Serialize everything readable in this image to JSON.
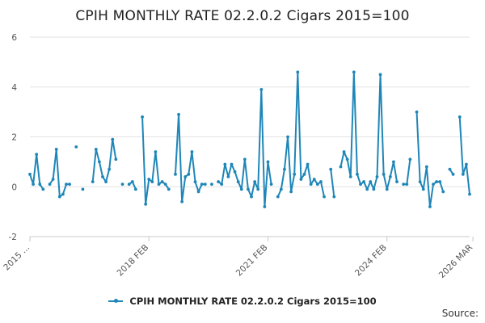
{
  "title": "CPIH MONTHLY RATE 02.2.0.2 Cigars 2015=100",
  "source_label": "Source:",
  "legend_label": "CPIH MONTHLY RATE 02.2.0.2 Cigars 2015=100",
  "colors": {
    "series": "#1f86b8",
    "grid": "#e2e2e2",
    "axis": "#c8c8c8",
    "text": "#555555"
  },
  "chart_data": {
    "type": "line",
    "title": "CPIH MONTHLY RATE 02.2.0.2 Cigars 2015=100",
    "xlabel": "",
    "ylabel": "",
    "ylim": [
      -2,
      6
    ],
    "y_ticks": [
      -2,
      0,
      2,
      4,
      6
    ],
    "x_tick_labels": [
      "2015 ...",
      "2018 FEB",
      "2021 FEB",
      "2024 FEB",
      "2026 MAR"
    ],
    "x_tick_index": [
      0,
      36,
      72,
      108,
      134
    ],
    "grid": true,
    "legend": "bottom",
    "series": [
      {
        "name": "CPIH MONTHLY RATE 02.2.0.2 Cigars 2015=100",
        "values": [
          0.5,
          0.1,
          1.3,
          0.1,
          -0.1,
          null,
          0.1,
          0.3,
          1.5,
          -0.4,
          -0.3,
          0.1,
          0.1,
          null,
          1.6,
          null,
          -0.1,
          null,
          null,
          0.2,
          1.5,
          1.0,
          0.4,
          0.2,
          0.7,
          1.9,
          1.1,
          null,
          0.1,
          null,
          0.1,
          0.2,
          -0.1,
          null,
          2.8,
          -0.7,
          0.3,
          0.2,
          1.4,
          0.1,
          0.2,
          0.1,
          -0.1,
          null,
          0.5,
          2.9,
          -0.6,
          0.4,
          0.5,
          1.4,
          0.2,
          -0.2,
          0.1,
          0.1,
          null,
          0.1,
          null,
          0.2,
          0.1,
          0.9,
          0.4,
          0.9,
          0.6,
          0.2,
          -0.1,
          1.1,
          -0.1,
          -0.4,
          0.2,
          -0.1,
          3.9,
          -0.8,
          1.0,
          0.1,
          null,
          -0.4,
          -0.1,
          0.7,
          2.0,
          -0.2,
          0.5,
          4.6,
          0.3,
          0.5,
          0.9,
          0.1,
          0.3,
          0.1,
          0.2,
          -0.4,
          null,
          0.7,
          -0.4,
          null,
          0.8,
          1.4,
          1.1,
          0.4,
          4.6,
          0.5,
          0.1,
          0.2,
          -0.1,
          0.2,
          -0.1,
          0.4,
          4.5,
          0.5,
          -0.1,
          0.4,
          1.0,
          0.2,
          null,
          0.1,
          0.1,
          1.1,
          null,
          3.0,
          0.2,
          -0.1,
          0.8,
          -0.8,
          0.1,
          0.2,
          0.2,
          -0.2,
          null,
          0.7,
          0.5,
          null,
          2.8,
          0.5,
          0.9,
          -0.3
        ]
      }
    ]
  }
}
